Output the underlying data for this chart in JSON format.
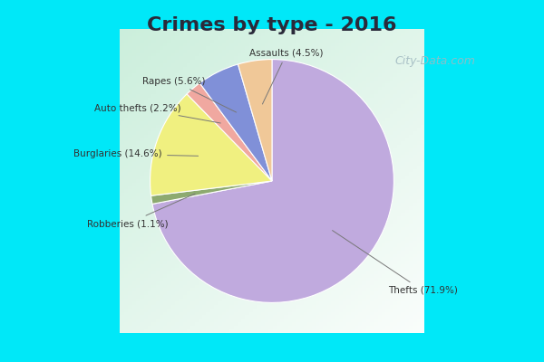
{
  "title": "Crimes by type - 2016",
  "title_fontsize": 16,
  "title_fontweight": "bold",
  "title_color": "#2a2a3a",
  "labels_order": [
    "Thefts",
    "Robberies",
    "Burglaries",
    "Auto thefts",
    "Rapes",
    "Assaults"
  ],
  "values": [
    71.9,
    1.1,
    14.6,
    2.2,
    5.6,
    4.5
  ],
  "display_labels": [
    "Thefts (71.9%)",
    "Robberies (1.1%)",
    "Burglaries (14.6%)",
    "Auto thefts (2.2%)",
    "Rapes (5.6%)",
    "Assaults (4.5%)"
  ],
  "colors": [
    "#c0aade",
    "#8daa70",
    "#f0f080",
    "#f0a8a0",
    "#8090d8",
    "#f0c898"
  ],
  "outer_bg_color": "#00e8f8",
  "startangle": 90,
  "counterclock": false
}
